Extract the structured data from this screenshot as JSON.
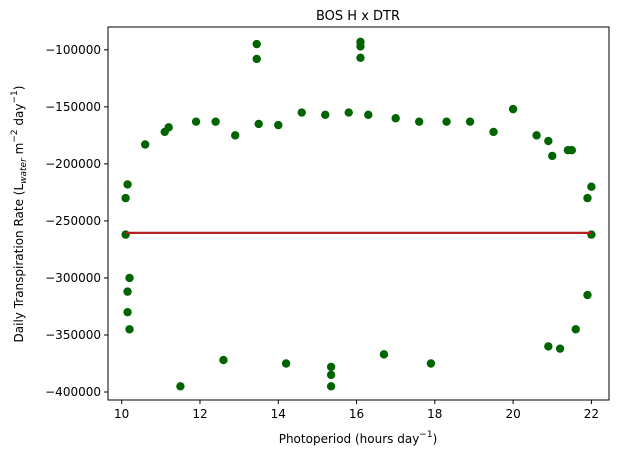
{
  "chart_data": {
    "type": "scatter",
    "title": "BOS H x DTR",
    "xlabel": {
      "prefix": "Photoperiod (hours day",
      "sup": "−1",
      "suffix": ")"
    },
    "ylabel": {
      "prefix": "Daily Transpiration Rate (L",
      "sub": "water",
      "mid1": " m",
      "sup1": "−2",
      "mid2": " day",
      "sup2": "−1",
      "suffix": ")"
    },
    "xlim": [
      9.65,
      22.45
    ],
    "ylim": [
      -407000,
      -80000
    ],
    "xticks": [
      10,
      12,
      14,
      16,
      18,
      20,
      22
    ],
    "xtick_labels": [
      "10",
      "12",
      "14",
      "16",
      "18",
      "20",
      "22"
    ],
    "yticks": [
      -400000,
      -350000,
      -300000,
      -250000,
      -200000,
      -150000,
      -100000
    ],
    "ytick_labels": [
      "−400000",
      "−350000",
      "−300000",
      "−250000",
      "−200000",
      "−150000",
      "−100000"
    ],
    "grid": false,
    "series": [
      {
        "marker_color": "#006400",
        "points_estimated": [
          [
            13.45,
            -95000
          ],
          [
            13.45,
            -108000
          ],
          [
            16.1,
            -93000
          ],
          [
            16.1,
            -97000
          ],
          [
            16.1,
            -107000
          ],
          [
            20.0,
            -152000
          ],
          [
            14.6,
            -155000
          ],
          [
            15.2,
            -157000
          ],
          [
            15.8,
            -155000
          ],
          [
            16.3,
            -157000
          ],
          [
            11.5,
            -395000
          ],
          [
            15.35,
            -395000
          ],
          [
            15.35,
            -385000
          ],
          [
            15.35,
            -378000
          ],
          [
            17.9,
            -375000
          ],
          [
            14.2,
            -375000
          ],
          [
            12.6,
            -372000
          ],
          [
            16.7,
            -367000
          ],
          [
            20.9,
            -360000
          ],
          [
            21.2,
            -362000
          ],
          [
            10.2,
            -345000
          ],
          [
            21.6,
            -345000
          ],
          [
            10.15,
            -330000
          ],
          [
            21.9,
            -315000
          ],
          [
            10.15,
            -312000
          ],
          [
            10.2,
            -300000
          ],
          [
            10.1,
            -230000
          ],
          [
            10.15,
            -218000
          ],
          [
            22.0,
            -220000
          ],
          [
            21.9,
            -230000
          ],
          [
            21.5,
            -188000
          ],
          [
            21.4,
            -188000
          ],
          [
            10.6,
            -183000
          ],
          [
            11.2,
            -168000
          ],
          [
            11.1,
            -172000
          ],
          [
            11.9,
            -163000
          ],
          [
            12.4,
            -163000
          ],
          [
            12.9,
            -175000
          ],
          [
            13.5,
            -165000
          ],
          [
            14.0,
            -166000
          ],
          [
            17.0,
            -160000
          ],
          [
            17.6,
            -163000
          ],
          [
            18.3,
            -163000
          ],
          [
            18.9,
            -163000
          ],
          [
            19.5,
            -172000
          ],
          [
            20.6,
            -175000
          ],
          [
            20.9,
            -180000
          ],
          [
            21.0,
            -193000
          ],
          [
            22.0,
            -262000
          ],
          [
            10.1,
            -262000
          ]
        ]
      }
    ],
    "trendline": {
      "color": "#b22222",
      "x": [
        10.1,
        22.0
      ],
      "y": [
        -260500,
        -260500
      ]
    }
  }
}
